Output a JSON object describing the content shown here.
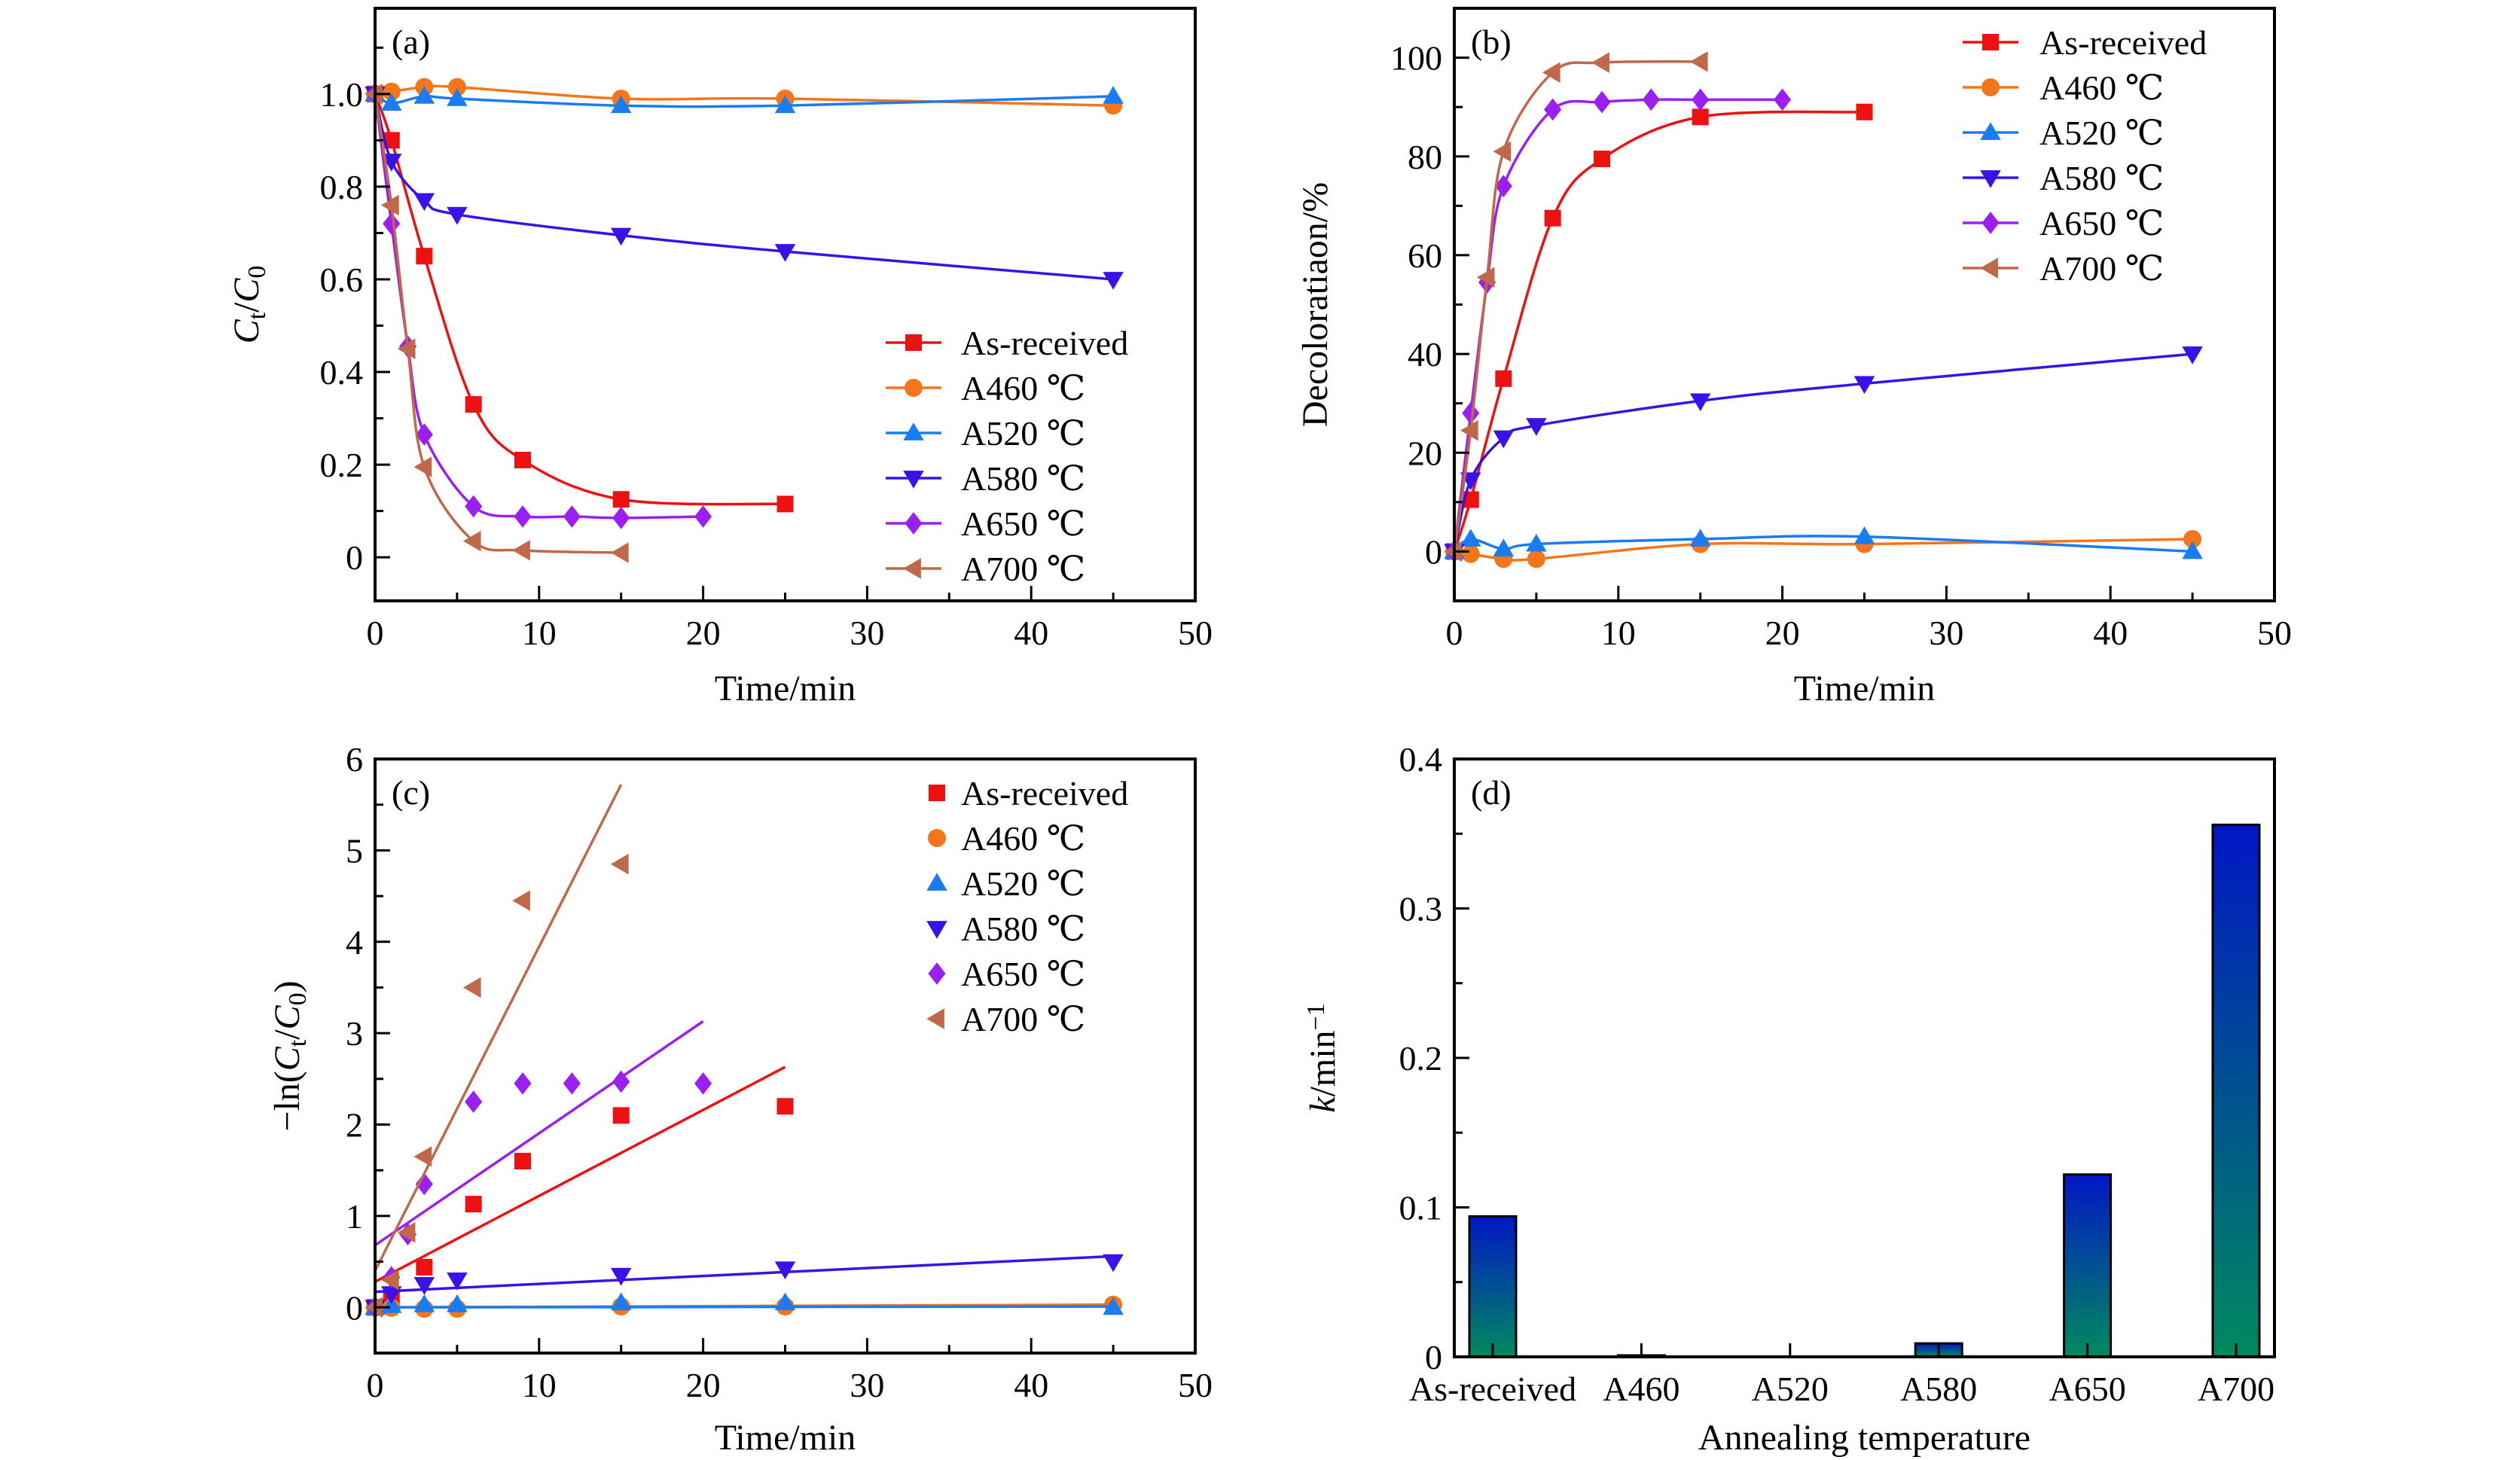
{
  "chart_data": [
    {
      "panel_id": "a",
      "panel_label": "(a)",
      "type": "line",
      "smooth": true,
      "xlabel": [
        {
          "text": "Time/min"
        }
      ],
      "ylabel": [
        {
          "text": "C",
          "italic": true
        },
        {
          "text": "t",
          "sub": true
        },
        {
          "text": "/"
        },
        {
          "text": "C",
          "italic": true
        },
        {
          "text": "0",
          "sub": true
        }
      ],
      "xlim": [
        0,
        50
      ],
      "ylim": [
        -0.094,
        1.185
      ],
      "xticks": [
        0,
        10,
        20,
        30,
        40,
        50
      ],
      "xticklabels": [
        "0",
        "10",
        "20",
        "30",
        "40",
        "50"
      ],
      "yticks": [
        0,
        0.2,
        0.4,
        0.6,
        0.8,
        1.0
      ],
      "yticklabels": [
        "0",
        "0.2",
        "0.4",
        "0.6",
        "0.8",
        "1.0"
      ],
      "grid": false,
      "legend_position": "lower-right",
      "legend_lines": true,
      "series": [
        {
          "name": "As-received",
          "color": "#ee1111",
          "marker": "square",
          "x": [
            0,
            1,
            3,
            6,
            9,
            15,
            25
          ],
          "y": [
            1.0,
            0.9,
            0.65,
            0.33,
            0.21,
            0.125,
            0.115
          ]
        },
        {
          "name": "A460 ℃",
          "color": "#f5761a",
          "marker": "circle",
          "x": [
            0,
            1,
            3,
            5,
            15,
            25,
            45
          ],
          "y": [
            1.0,
            1.005,
            1.015,
            1.015,
            0.99,
            0.99,
            0.975
          ]
        },
        {
          "name": "A520 ℃",
          "color": "#1a7cf5",
          "marker": "triangle-up",
          "x": [
            0,
            1,
            3,
            5,
            15,
            25,
            45
          ],
          "y": [
            1.0,
            0.98,
            0.995,
            0.99,
            0.975,
            0.975,
            0.995
          ]
        },
        {
          "name": "A580 ℃",
          "color": "#3a12e8",
          "marker": "triangle-down",
          "x": [
            0,
            1,
            3,
            5,
            15,
            25,
            45
          ],
          "y": [
            1.0,
            0.855,
            0.77,
            0.74,
            0.695,
            0.66,
            0.6
          ]
        },
        {
          "name": "A650 ℃",
          "color": "#9b1ff0",
          "marker": "diamond",
          "x": [
            0,
            1,
            2,
            3,
            6,
            9,
            12,
            15,
            20
          ],
          "y": [
            1.0,
            0.72,
            0.455,
            0.265,
            0.11,
            0.088,
            0.088,
            0.085,
            0.088
          ]
        },
        {
          "name": "A700 ℃",
          "color": "#c0694a",
          "marker": "triangle-left",
          "x": [
            0,
            1,
            2,
            3,
            6,
            9,
            15
          ],
          "y": [
            1.0,
            0.76,
            0.45,
            0.195,
            0.035,
            0.015,
            0.01
          ]
        }
      ]
    },
    {
      "panel_id": "b",
      "panel_label": "(b)",
      "type": "line",
      "smooth": true,
      "xlabel": [
        {
          "text": "Time/min"
        }
      ],
      "ylabel": [
        {
          "text": "Decoloratiaon/%"
        }
      ],
      "xlim": [
        0,
        50
      ],
      "ylim": [
        -10,
        110
      ],
      "xticks": [
        0,
        10,
        20,
        30,
        40,
        50
      ],
      "xticklabels": [
        "0",
        "10",
        "20",
        "30",
        "40",
        "50"
      ],
      "yticks": [
        0,
        20,
        40,
        60,
        80,
        100
      ],
      "yticklabels": [
        "0",
        "20",
        "40",
        "60",
        "80",
        "100"
      ],
      "grid": false,
      "legend_position": "top-right",
      "legend_lines": true,
      "series": [
        {
          "name": "As-received",
          "color": "#ee1111",
          "marker": "square",
          "x": [
            0,
            1,
            3,
            6,
            9,
            15,
            25
          ],
          "y": [
            0,
            10.5,
            35,
            67.5,
            79.5,
            88,
            89
          ]
        },
        {
          "name": "A460 ℃",
          "color": "#f5761a",
          "marker": "circle",
          "x": [
            0,
            1,
            3,
            5,
            15,
            25,
            45
          ],
          "y": [
            0,
            -0.5,
            -1.5,
            -1.5,
            1.5,
            1.5,
            2.5
          ]
        },
        {
          "name": "A520 ℃",
          "color": "#1a7cf5",
          "marker": "triangle-up",
          "x": [
            0,
            1,
            3,
            5,
            15,
            25,
            45
          ],
          "y": [
            0,
            2.5,
            0.5,
            1.5,
            2.5,
            3,
            0
          ]
        },
        {
          "name": "A580 ℃",
          "color": "#3a12e8",
          "marker": "triangle-down",
          "x": [
            0,
            1,
            3,
            5,
            15,
            25,
            45
          ],
          "y": [
            0,
            14.5,
            23,
            25.5,
            30.5,
            34,
            40
          ]
        },
        {
          "name": "A650 ℃",
          "color": "#9b1ff0",
          "marker": "diamond",
          "x": [
            0,
            1,
            2,
            3,
            6,
            9,
            12,
            15,
            20
          ],
          "y": [
            0,
            28,
            54.5,
            74,
            89.5,
            91,
            91.5,
            91.5,
            91.5
          ]
        },
        {
          "name": "A700 ℃",
          "color": "#c0694a",
          "marker": "triangle-left",
          "x": [
            0,
            1,
            2,
            3,
            6,
            9,
            15
          ],
          "y": [
            0,
            24.5,
            55.5,
            81,
            97,
            99,
            99.2
          ]
        }
      ]
    },
    {
      "panel_id": "c",
      "panel_label": "(c)",
      "type": "scatter",
      "smooth": false,
      "xlabel": [
        {
          "text": "Time/min"
        }
      ],
      "ylabel": [
        {
          "text": "−ln("
        },
        {
          "text": "C",
          "italic": true
        },
        {
          "text": "t",
          "sub": true
        },
        {
          "text": "/"
        },
        {
          "text": "C",
          "italic": true
        },
        {
          "text": "0",
          "sub": true
        },
        {
          "text": ")"
        }
      ],
      "xlim": [
        0,
        50
      ],
      "ylim": [
        -0.5,
        6
      ],
      "xticks": [
        0,
        10,
        20,
        30,
        40,
        50
      ],
      "xticklabels": [
        "0",
        "10",
        "20",
        "30",
        "40",
        "50"
      ],
      "yticks": [
        0,
        1,
        2,
        3,
        4,
        5,
        6
      ],
      "yticklabels": [
        "0",
        "1",
        "2",
        "3",
        "4",
        "5",
        "6"
      ],
      "grid": false,
      "legend_position": "top-right",
      "legend_lines": false,
      "series": [
        {
          "name": "As-received",
          "color": "#ee1111",
          "marker": "square",
          "x": [
            0,
            1,
            3,
            6,
            9,
            15,
            25
          ],
          "y": [
            0,
            0.1,
            0.44,
            1.13,
            1.6,
            2.1,
            2.2
          ],
          "fit_line": {
            "x": [
              0,
              25
            ],
            "y": [
              0.28,
              2.63
            ]
          }
        },
        {
          "name": "A460 ℃",
          "color": "#f5761a",
          "marker": "circle",
          "x": [
            0,
            1,
            3,
            5,
            15,
            25,
            45
          ],
          "y": [
            0,
            -0.005,
            -0.015,
            -0.015,
            0.01,
            0.01,
            0.03
          ],
          "fit_line": {
            "x": [
              0,
              45
            ],
            "y": [
              0.0,
              0.03
            ]
          }
        },
        {
          "name": "A520 ℃",
          "color": "#1a7cf5",
          "marker": "triangle-up",
          "x": [
            0,
            1,
            3,
            5,
            15,
            25,
            45
          ],
          "y": [
            0,
            0.02,
            0.03,
            0.03,
            0.05,
            0.05,
            0.0
          ],
          "fit_line": {
            "x": [
              0,
              45
            ],
            "y": [
              0.0,
              0.01
            ]
          }
        },
        {
          "name": "A580 ℃",
          "color": "#3a12e8",
          "marker": "triangle-down",
          "x": [
            0,
            1,
            3,
            5,
            15,
            25,
            45
          ],
          "y": [
            0,
            0.15,
            0.25,
            0.3,
            0.35,
            0.42,
            0.5
          ],
          "fit_line": {
            "x": [
              0,
              45
            ],
            "y": [
              0.17,
              0.56
            ]
          }
        },
        {
          "name": "A650 ℃",
          "color": "#9b1ff0",
          "marker": "diamond",
          "x": [
            0,
            1,
            2,
            3,
            6,
            9,
            12,
            15,
            20
          ],
          "y": [
            0,
            0.33,
            0.8,
            1.35,
            2.25,
            2.45,
            2.45,
            2.47,
            2.45
          ],
          "fit_line": {
            "x": [
              0,
              20
            ],
            "y": [
              0.68,
              3.13
            ]
          }
        },
        {
          "name": "A700 ℃",
          "color": "#c0694a",
          "marker": "triangle-left",
          "x": [
            0,
            1,
            2,
            3,
            6,
            9,
            15
          ],
          "y": [
            0,
            0.3,
            0.82,
            1.65,
            3.5,
            4.45,
            4.85
          ],
          "fit_line": {
            "x": [
              0,
              15
            ],
            "y": [
              0.4,
              5.72
            ]
          }
        }
      ]
    },
    {
      "panel_id": "d",
      "panel_label": "(d)",
      "type": "bar",
      "xlabel": [
        {
          "text": "Annealing temperature"
        }
      ],
      "ylabel": [
        {
          "text": "k",
          "italic": true
        },
        {
          "text": "/min"
        },
        {
          "text": "−1",
          "sup": true
        }
      ],
      "categories": [
        "As-received",
        "A460",
        "A520",
        "A580",
        "A650",
        "A700"
      ],
      "values": [
        0.094,
        0.001,
        0.0,
        0.009,
        0.122,
        0.356
      ],
      "ylim": [
        0,
        0.4
      ],
      "yticks": [
        0,
        0.1,
        0.2,
        0.3,
        0.4
      ],
      "yticklabels": [
        "0",
        "0.1",
        "0.2",
        "0.3",
        "0.4"
      ],
      "grid": false,
      "bar_gradient": {
        "top": "#0017c4",
        "bottom": "#008a5e"
      }
    }
  ]
}
